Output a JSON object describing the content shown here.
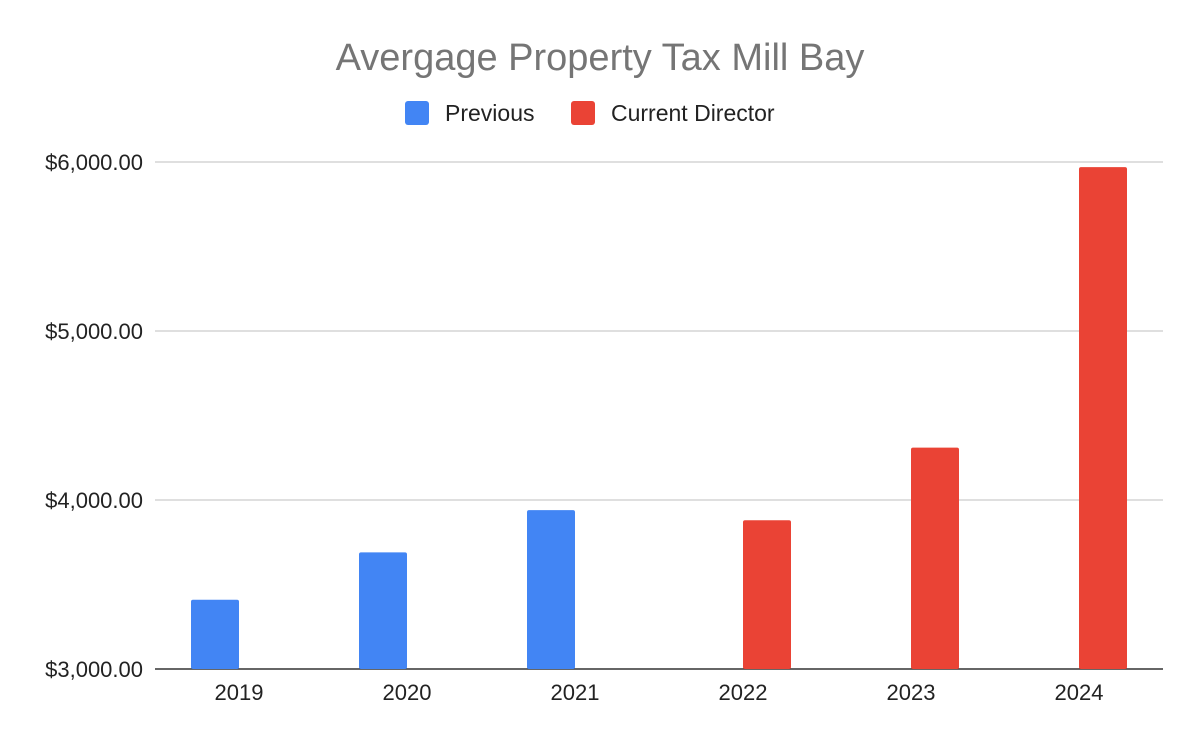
{
  "chart_data": {
    "type": "bar",
    "title": "Avergage Property Tax Mill Bay",
    "xlabel": "",
    "ylabel": "",
    "categories": [
      "2019",
      "2020",
      "2021",
      "2022",
      "2023",
      "2024"
    ],
    "series": [
      {
        "name": "Previous",
        "color": "#4285f4",
        "values": [
          3410,
          3690,
          3940,
          null,
          null,
          null
        ]
      },
      {
        "name": "Current Director",
        "color": "#ea4335",
        "values": [
          null,
          null,
          null,
          3880,
          4310,
          5970
        ]
      }
    ],
    "ylim": [
      3000,
      6000
    ],
    "yticks": [
      3000,
      4000,
      5000,
      6000
    ],
    "ytick_labels": [
      "$3,000.00",
      "$4,000.00",
      "$5,000.00",
      "$6,000.00"
    ],
    "grid": true,
    "legend_position": "top-center",
    "colors": {
      "gridline": "#cccccc",
      "axis": "#333333"
    }
  }
}
